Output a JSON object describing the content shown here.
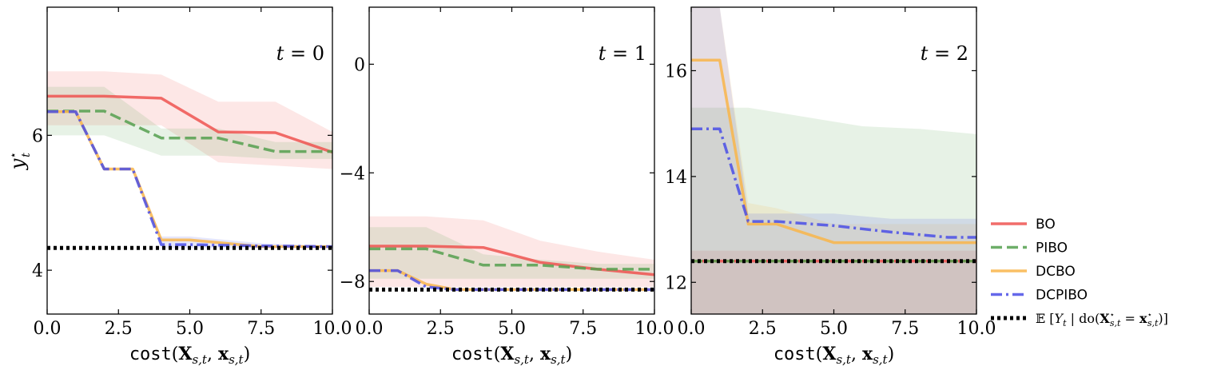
{
  "chart_data": [
    {
      "type": "line",
      "annotation": "t = 0",
      "xlabel": "cost(X_{s,t}, x_{s,t})",
      "ylabel": "y*_t",
      "xlim": [
        0,
        10
      ],
      "ylim": [
        3.35,
        7.9
      ],
      "xticks": [
        0,
        2.5,
        5,
        7.5,
        10
      ],
      "xtick_labels": [
        "0.0",
        "2.5",
        "5.0",
        "7.5",
        "10.0"
      ],
      "yticks": [
        4,
        6
      ],
      "ytick_labels": [
        "4",
        "6"
      ],
      "series": [
        {
          "name": "BO",
          "color": "#ef5350",
          "dash": "solid",
          "x": [
            0,
            2,
            4,
            6,
            8,
            10
          ],
          "y": [
            6.58,
            6.58,
            6.55,
            6.05,
            6.04,
            5.75
          ],
          "band_x": [
            0,
            2,
            4,
            6,
            8,
            10
          ],
          "band_lo": [
            6.15,
            6.15,
            6.15,
            5.6,
            5.55,
            5.5
          ],
          "band_hi": [
            6.95,
            6.95,
            6.9,
            6.5,
            6.5,
            6.05
          ]
        },
        {
          "name": "PIBO",
          "color": "#55a04f",
          "dash": "dashed",
          "x": [
            0,
            2,
            4,
            6,
            8,
            10
          ],
          "y": [
            6.36,
            6.36,
            5.96,
            5.96,
            5.76,
            5.76
          ],
          "band_x": [
            0,
            2,
            4,
            6,
            8,
            10
          ],
          "band_lo": [
            6.0,
            6.0,
            5.7,
            5.7,
            5.65,
            5.65
          ],
          "band_hi": [
            6.72,
            6.72,
            6.1,
            6.1,
            5.9,
            5.9
          ]
        },
        {
          "name": "DCBO",
          "color": "#f9b54a",
          "dash": "solid",
          "x": [
            0,
            1,
            2,
            3,
            4,
            5,
            7.5,
            10
          ],
          "y": [
            6.35,
            6.35,
            5.5,
            5.5,
            4.45,
            4.45,
            4.35,
            4.35
          ]
        },
        {
          "name": "DCPIBO",
          "color": "#4a4ee6",
          "dash": "dashdot",
          "x": [
            0,
            1,
            2,
            3,
            4,
            5,
            7.5,
            10
          ],
          "y": [
            6.35,
            6.35,
            5.5,
            5.5,
            4.38,
            4.38,
            4.36,
            4.35
          ],
          "band_x": [
            4,
            5,
            7.5,
            10
          ],
          "band_lo": [
            4.33,
            4.33,
            4.33,
            4.33
          ],
          "band_hi": [
            4.5,
            4.5,
            4.4,
            4.36
          ]
        },
        {
          "name": "E[Y_t | do(X*_{s,t} = x*_{s,t})]",
          "color": "#000000",
          "dash": "dotted",
          "x": [
            0,
            10
          ],
          "y": [
            4.33,
            4.33
          ]
        }
      ]
    },
    {
      "type": "line",
      "annotation": "t = 1",
      "xlabel": "cost(X_{s,t}, x_{s,t})",
      "ylabel": "",
      "xlim": [
        0,
        10
      ],
      "ylim": [
        -9.2,
        2.1
      ],
      "xticks": [
        0,
        2.5,
        5,
        7.5,
        10
      ],
      "xtick_labels": [
        "0.0",
        "2.5",
        "5.0",
        "7.5",
        "10.0"
      ],
      "yticks": [
        -8,
        -4,
        0
      ],
      "ytick_labels": [
        "−8",
        "−4",
        "0"
      ],
      "series": [
        {
          "name": "BO",
          "color": "#ef5350",
          "dash": "solid",
          "x": [
            0,
            2,
            4,
            6,
            8,
            10
          ],
          "y": [
            -6.7,
            -6.7,
            -6.75,
            -7.3,
            -7.55,
            -7.75
          ],
          "band_x": [
            0,
            2,
            4,
            6,
            8,
            10
          ],
          "band_lo": [
            -8.2,
            -8.2,
            -8.2,
            -8.2,
            -8.2,
            -8.2
          ],
          "band_hi": [
            -5.6,
            -5.6,
            -5.75,
            -6.5,
            -6.9,
            -7.2
          ]
        },
        {
          "name": "PIBO",
          "color": "#55a04f",
          "dash": "dashed",
          "x": [
            0,
            2,
            4,
            6,
            8,
            10
          ],
          "y": [
            -6.8,
            -6.8,
            -7.4,
            -7.4,
            -7.55,
            -7.55
          ],
          "band_x": [
            0,
            2,
            4,
            6,
            8,
            10
          ],
          "band_lo": [
            -7.9,
            -7.9,
            -7.9,
            -7.9,
            -7.9,
            -7.9
          ],
          "band_hi": [
            -6.0,
            -6.0,
            -7.0,
            -7.2,
            -7.35,
            -7.35
          ]
        },
        {
          "name": "DCBO",
          "color": "#f9b54a",
          "dash": "solid",
          "x": [
            0,
            1,
            2,
            3,
            10
          ],
          "y": [
            -7.6,
            -7.6,
            -8.1,
            -8.3,
            -8.3
          ]
        },
        {
          "name": "DCPIBO",
          "color": "#4a4ee6",
          "dash": "dashdot",
          "x": [
            0,
            1,
            2,
            3,
            10
          ],
          "y": [
            -7.6,
            -7.6,
            -8.2,
            -8.3,
            -8.3
          ]
        },
        {
          "name": "E[Y_t | do(X*_{s,t} = x*_{s,t})]",
          "color": "#000000",
          "dash": "dotted",
          "x": [
            0,
            10
          ],
          "y": [
            -8.3,
            -8.3
          ]
        }
      ]
    },
    {
      "type": "line",
      "annotation": "t = 2",
      "xlabel": "cost(X_{s,t}, x_{s,t})",
      "ylabel": "",
      "xlim": [
        0,
        10
      ],
      "ylim": [
        11.4,
        17.2
      ],
      "xticks": [
        0,
        2.5,
        5,
        7.5,
        10
      ],
      "xtick_labels": [
        "0.0",
        "2.5",
        "5.0",
        "7.5",
        "10.0"
      ],
      "yticks": [
        12,
        14,
        16
      ],
      "ytick_labels": [
        "12",
        "14",
        "16"
      ],
      "series": [
        {
          "name": "BO",
          "color": "#ef5350",
          "dash": "solid",
          "x": [
            0,
            10
          ],
          "y": [
            12.4,
            12.4
          ],
          "band_x": [
            0,
            10
          ],
          "band_lo": [
            11.4,
            11.4
          ],
          "band_hi": [
            12.6,
            12.6
          ]
        },
        {
          "name": "PIBO",
          "color": "#55a04f",
          "dash": "dashed",
          "x": [
            0,
            10
          ],
          "y": [
            12.4,
            12.4
          ],
          "band_x": [
            0,
            2,
            6,
            8,
            10
          ],
          "band_lo": [
            11.4,
            11.4,
            11.4,
            11.4,
            11.4
          ],
          "band_hi": [
            15.3,
            15.3,
            14.95,
            14.9,
            14.8
          ]
        },
        {
          "name": "DCBO",
          "color": "#f9b54a",
          "dash": "solid",
          "x": [
            0,
            1,
            2,
            3,
            5,
            10
          ],
          "y": [
            16.2,
            16.2,
            13.1,
            13.1,
            12.75,
            12.75
          ],
          "band_x": [
            0,
            1,
            2,
            3,
            5,
            10
          ],
          "band_lo": [
            11.4,
            11.4,
            11.4,
            11.4,
            11.4,
            11.4
          ],
          "band_hi": [
            17.2,
            17.2,
            13.5,
            13.4,
            13.1,
            13.1
          ]
        },
        {
          "name": "DCPIBO",
          "color": "#4a4ee6",
          "dash": "dashdot",
          "x": [
            0,
            1,
            2,
            3,
            5,
            7,
            9,
            10
          ],
          "y": [
            14.9,
            14.9,
            13.15,
            13.15,
            13.07,
            12.95,
            12.85,
            12.85
          ],
          "band_x": [
            0,
            1,
            2,
            3,
            5,
            7,
            9,
            10
          ],
          "band_lo": [
            11.4,
            11.4,
            11.4,
            11.4,
            11.4,
            11.4,
            11.4,
            11.4
          ],
          "band_hi": [
            17.2,
            17.2,
            13.3,
            13.3,
            13.3,
            13.2,
            13.2,
            13.2
          ]
        },
        {
          "name": "E[Y_t | do(X*_{s,t} = x*_{s,t})]",
          "color": "#000000",
          "dash": "dotted",
          "x": [
            0,
            10
          ],
          "y": [
            12.4,
            12.4
          ]
        }
      ]
    }
  ],
  "legend": {
    "placement": "right",
    "entries": [
      {
        "label": "BO",
        "color": "#ef5350",
        "dash": "solid"
      },
      {
        "label": "PIBO",
        "color": "#55a04f",
        "dash": "dashed"
      },
      {
        "label": "DCBO",
        "color": "#f9b54a",
        "dash": "solid"
      },
      {
        "label": "DCPIBO",
        "color": "#4a4ee6",
        "dash": "dashdot"
      },
      {
        "label": "𝔼[Y_t | do(X*_{s,t} = x*_{s,t})]",
        "color": "#000000",
        "dash": "dotted"
      }
    ]
  }
}
